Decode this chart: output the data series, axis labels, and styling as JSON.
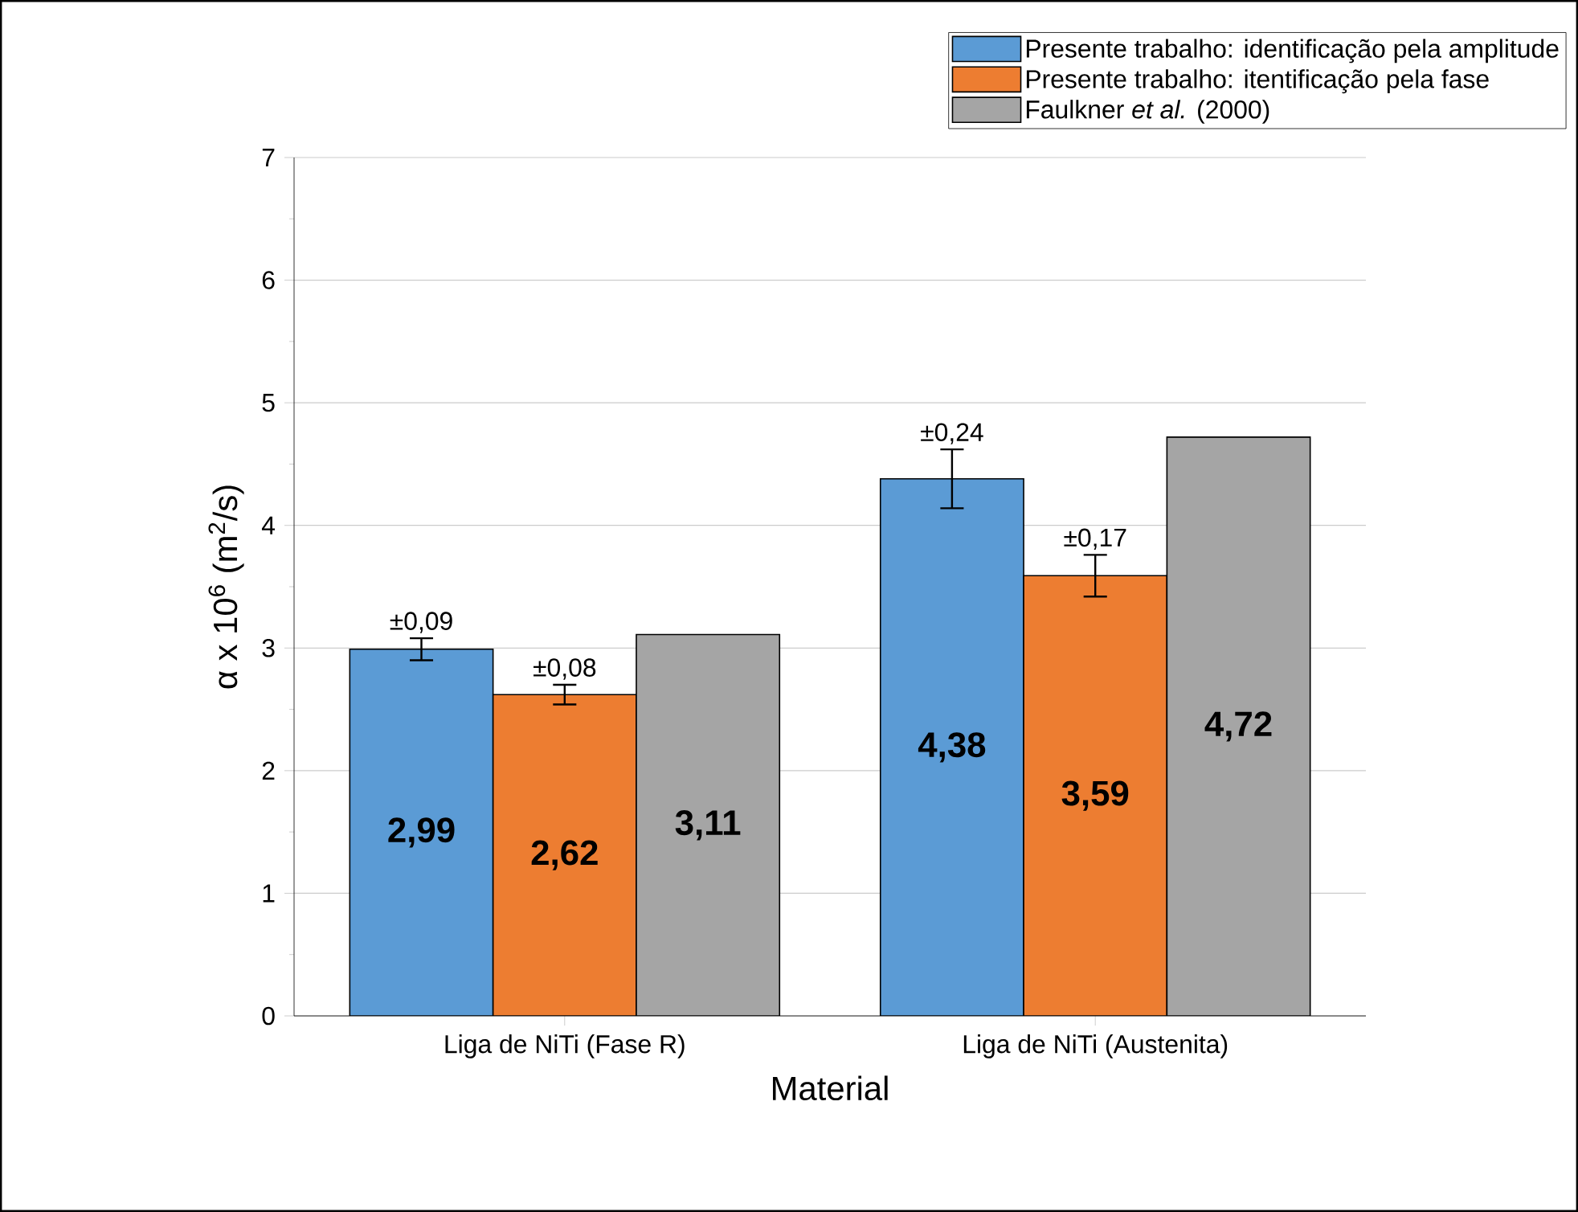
{
  "chart_data": {
    "type": "bar",
    "xlabel": "Material",
    "ylabel": "α x 10$^{6}$ (m$^{2}$/s)",
    "categories": [
      "Liga de NiTi (Fase R)",
      "Liga de NiTi (Austenita)"
    ],
    "series": [
      {
        "name": "Presente trabalho: identificação pela amplitude",
        "color": "#5b9bd5",
        "values": [
          2.99,
          4.38
        ],
        "errors": [
          0.09,
          0.24
        ],
        "value_labels": [
          "2,99",
          "4,38"
        ]
      },
      {
        "name": "Presente trabalho: itentificação pela fase",
        "color": "#ed7d31",
        "values": [
          2.62,
          3.59
        ],
        "errors": [
          0.08,
          0.17
        ],
        "value_labels": [
          "2,62",
          "3,59"
        ]
      },
      {
        "name": "Faulkner *et al.* (2000)",
        "color": "#a5a5a5",
        "values": [
          3.11,
          4.72
        ],
        "value_labels": [
          "3,11",
          "4,72"
        ]
      }
    ],
    "annotations": [
      "±0,09",
      "±0,08",
      "±0,24",
      "±0,17"
    ],
    "ylim": [
      0,
      7
    ],
    "yticks": [
      0,
      1,
      2,
      3,
      4,
      5,
      6,
      7
    ],
    "grid": "y",
    "legend": "top right"
  }
}
